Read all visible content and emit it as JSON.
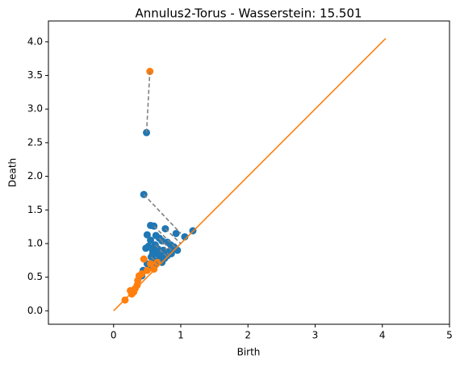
{
  "chart_data": {
    "type": "scatter",
    "title": "Annulus2-Torus - Wasserstein: 15.501",
    "xlabel": "Birth",
    "ylabel": "Death",
    "xlim": [
      -0.97,
      5.0
    ],
    "ylim": [
      -0.2,
      4.31
    ],
    "xticks": [
      0,
      1,
      2,
      3,
      4,
      5
    ],
    "yticks": [
      {
        "value": 0,
        "label": "0.0"
      },
      0.5,
      {
        "value": 1,
        "label": "1.0"
      },
      1.5,
      {
        "value": 2,
        "label": "2.0"
      },
      2.5,
      {
        "value": 3,
        "label": "3.0"
      },
      3.5,
      {
        "value": 4,
        "label": "4.0"
      }
    ],
    "series": [
      {
        "color": "#1f77b4",
        "x": [
          0.49,
          0.45,
          0.55,
          0.6,
          0.77,
          0.5,
          0.93,
          1.06,
          1.18,
          0.63,
          0.55,
          0.68,
          0.72,
          0.8,
          0.85,
          0.9,
          0.62,
          0.48,
          0.52,
          0.58,
          0.66,
          0.74,
          0.82,
          0.88,
          0.95,
          0.7,
          0.64,
          0.56,
          0.6,
          0.68,
          0.76,
          0.5,
          0.44,
          0.42,
          0.54,
          0.62,
          0.72,
          0.8,
          0.86,
          0.58
        ],
        "y": [
          2.65,
          1.73,
          1.27,
          1.26,
          1.22,
          1.13,
          1.15,
          1.1,
          1.19,
          1.12,
          1.05,
          1.08,
          1.04,
          1.02,
          0.98,
          0.95,
          0.98,
          0.93,
          0.96,
          0.9,
          0.92,
          0.9,
          0.88,
          0.92,
          0.9,
          0.82,
          0.85,
          0.8,
          0.75,
          0.76,
          0.78,
          0.7,
          0.6,
          0.52,
          0.65,
          0.68,
          0.72,
          0.82,
          0.85,
          0.84
        ]
      },
      {
        "color": "#ff7f0e",
        "x": [
          0.54,
          0.17,
          0.25,
          0.27,
          0.32,
          0.35,
          0.36,
          0.38,
          0.45,
          0.42,
          0.5,
          0.6,
          0.55,
          0.65,
          0.3
        ],
        "y": [
          3.56,
          0.16,
          0.3,
          0.25,
          0.33,
          0.38,
          0.45,
          0.52,
          0.77,
          0.55,
          0.6,
          0.62,
          0.7,
          0.72,
          0.28
        ]
      }
    ],
    "diagonal": {
      "color": "#ff7f0e",
      "x": [
        0,
        4.05
      ],
      "y": [
        0,
        4.05
      ]
    },
    "matchings": [
      {
        "x": [
          0.49,
          0.54
        ],
        "y": [
          2.65,
          3.56
        ]
      },
      {
        "x": [
          0.45,
          1.0
        ],
        "y": [
          1.73,
          1.15
        ]
      },
      {
        "x": [
          0.77,
          1.0
        ],
        "y": [
          1.22,
          1.0
        ]
      },
      {
        "x": [
          0.6,
          0.93
        ],
        "y": [
          1.26,
          0.93
        ]
      },
      {
        "x": [
          0.68,
          0.88
        ],
        "y": [
          1.08,
          0.88
        ]
      },
      {
        "x": [
          0.62,
          0.8
        ],
        "y": [
          0.98,
          0.8
        ]
      },
      {
        "x": [
          0.56,
          0.68
        ],
        "y": [
          0.8,
          0.68
        ]
      },
      {
        "x": [
          0.72,
          0.82
        ],
        "y": [
          1.04,
          0.82
        ]
      }
    ]
  }
}
